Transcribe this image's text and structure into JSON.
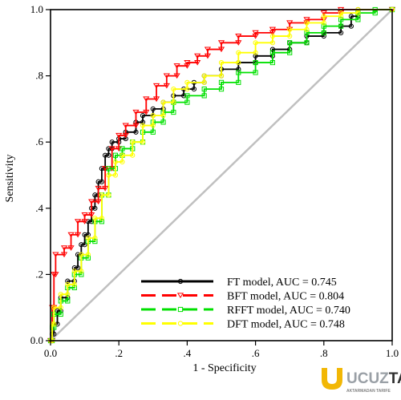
{
  "chart_data": {
    "type": "line",
    "title": "",
    "xlabel": "1 - Specificity",
    "ylabel": "Sensitivity",
    "xlim": [
      0,
      1
    ],
    "ylim": [
      0,
      1
    ],
    "x_ticks": [
      {
        "value": 0.0,
        "label": "0.0"
      },
      {
        "value": 0.2,
        "label": ".2"
      },
      {
        "value": 0.4,
        "label": ".4"
      },
      {
        "value": 0.6,
        "label": ".6"
      },
      {
        "value": 0.8,
        "label": ".8"
      },
      {
        "value": 1.0,
        "label": "1.0"
      }
    ],
    "y_ticks": [
      {
        "value": 0.0,
        "label": "0.0"
      },
      {
        "value": 0.2,
        "label": ".2"
      },
      {
        "value": 0.4,
        "label": ".4"
      },
      {
        "value": 0.6,
        "label": ".6"
      },
      {
        "value": 0.8,
        "label": ".8"
      },
      {
        "value": 1.0,
        "label": "1.0"
      }
    ],
    "grid": false,
    "legend_position": "bottom-right",
    "reference_line": {
      "x": [
        0,
        1
      ],
      "y": [
        0,
        1
      ],
      "color": "#c0c0c0"
    },
    "series": [
      {
        "name": "FT model, AUC = 0.745",
        "color": "#000000",
        "dashed": false,
        "marker": "circle",
        "points": [
          [
            0,
            0
          ],
          [
            0.005,
            0.02
          ],
          [
            0.01,
            0.05
          ],
          [
            0.02,
            0.09
          ],
          [
            0.03,
            0.13
          ],
          [
            0.05,
            0.18
          ],
          [
            0.07,
            0.22
          ],
          [
            0.08,
            0.26
          ],
          [
            0.09,
            0.29
          ],
          [
            0.1,
            0.32
          ],
          [
            0.11,
            0.36
          ],
          [
            0.12,
            0.4
          ],
          [
            0.13,
            0.44
          ],
          [
            0.14,
            0.48
          ],
          [
            0.15,
            0.52
          ],
          [
            0.16,
            0.56
          ],
          [
            0.17,
            0.58
          ],
          [
            0.18,
            0.6
          ],
          [
            0.2,
            0.61
          ],
          [
            0.22,
            0.63
          ],
          [
            0.25,
            0.66
          ],
          [
            0.27,
            0.68
          ],
          [
            0.3,
            0.7
          ],
          [
            0.33,
            0.72
          ],
          [
            0.36,
            0.74
          ],
          [
            0.39,
            0.76
          ],
          [
            0.42,
            0.78
          ],
          [
            0.45,
            0.8
          ],
          [
            0.5,
            0.82
          ],
          [
            0.55,
            0.84
          ],
          [
            0.6,
            0.86
          ],
          [
            0.65,
            0.88
          ],
          [
            0.7,
            0.9
          ],
          [
            0.75,
            0.92
          ],
          [
            0.8,
            0.93
          ],
          [
            0.85,
            0.95
          ],
          [
            0.88,
            0.98
          ],
          [
            0.9,
            1.0
          ],
          [
            1.0,
            1.0
          ]
        ]
      },
      {
        "name": "BFT model, AUC = 0.804",
        "color": "#ff0000",
        "dashed": true,
        "marker": "triangle-down",
        "points": [
          [
            0,
            0
          ],
          [
            0.005,
            0.1
          ],
          [
            0.01,
            0.2
          ],
          [
            0.015,
            0.26
          ],
          [
            0.04,
            0.28
          ],
          [
            0.06,
            0.32
          ],
          [
            0.08,
            0.36
          ],
          [
            0.1,
            0.38
          ],
          [
            0.12,
            0.42
          ],
          [
            0.14,
            0.46
          ],
          [
            0.16,
            0.52
          ],
          [
            0.18,
            0.58
          ],
          [
            0.2,
            0.62
          ],
          [
            0.22,
            0.65
          ],
          [
            0.25,
            0.69
          ],
          [
            0.28,
            0.73
          ],
          [
            0.31,
            0.77
          ],
          [
            0.34,
            0.8
          ],
          [
            0.37,
            0.83
          ],
          [
            0.4,
            0.84
          ],
          [
            0.43,
            0.86
          ],
          [
            0.46,
            0.88
          ],
          [
            0.5,
            0.9
          ],
          [
            0.55,
            0.92
          ],
          [
            0.6,
            0.93
          ],
          [
            0.65,
            0.94
          ],
          [
            0.7,
            0.96
          ],
          [
            0.75,
            0.97
          ],
          [
            0.8,
            0.99
          ],
          [
            0.85,
            1.0
          ],
          [
            1.0,
            1.0
          ]
        ]
      },
      {
        "name": "RFFT model, AUC = 0.740",
        "color": "#00e000",
        "dashed": true,
        "marker": "square",
        "points": [
          [
            0,
            0
          ],
          [
            0.005,
            0.04
          ],
          [
            0.01,
            0.08
          ],
          [
            0.03,
            0.12
          ],
          [
            0.05,
            0.16
          ],
          [
            0.07,
            0.2
          ],
          [
            0.09,
            0.25
          ],
          [
            0.11,
            0.3
          ],
          [
            0.13,
            0.36
          ],
          [
            0.15,
            0.44
          ],
          [
            0.17,
            0.52
          ],
          [
            0.19,
            0.56
          ],
          [
            0.21,
            0.58
          ],
          [
            0.24,
            0.6
          ],
          [
            0.27,
            0.63
          ],
          [
            0.3,
            0.66
          ],
          [
            0.33,
            0.69
          ],
          [
            0.36,
            0.72
          ],
          [
            0.4,
            0.74
          ],
          [
            0.45,
            0.76
          ],
          [
            0.5,
            0.78
          ],
          [
            0.55,
            0.81
          ],
          [
            0.6,
            0.84
          ],
          [
            0.65,
            0.87
          ],
          [
            0.7,
            0.9
          ],
          [
            0.75,
            0.93
          ],
          [
            0.8,
            0.95
          ],
          [
            0.85,
            0.97
          ],
          [
            0.9,
            0.99
          ],
          [
            0.95,
            1.0
          ],
          [
            1.0,
            1.0
          ]
        ]
      },
      {
        "name": "DFT model, AUC = 0.748",
        "color": "#ffff00",
        "dashed": true,
        "marker": "circle",
        "points": [
          [
            0,
            0
          ],
          [
            0.005,
            0.05
          ],
          [
            0.01,
            0.1
          ],
          [
            0.03,
            0.14
          ],
          [
            0.05,
            0.17
          ],
          [
            0.07,
            0.21
          ],
          [
            0.09,
            0.26
          ],
          [
            0.11,
            0.31
          ],
          [
            0.13,
            0.37
          ],
          [
            0.15,
            0.44
          ],
          [
            0.17,
            0.5
          ],
          [
            0.19,
            0.54
          ],
          [
            0.21,
            0.56
          ],
          [
            0.24,
            0.6
          ],
          [
            0.27,
            0.65
          ],
          [
            0.3,
            0.68
          ],
          [
            0.33,
            0.72
          ],
          [
            0.36,
            0.76
          ],
          [
            0.4,
            0.78
          ],
          [
            0.45,
            0.8
          ],
          [
            0.5,
            0.84
          ],
          [
            0.55,
            0.87
          ],
          [
            0.6,
            0.9
          ],
          [
            0.65,
            0.92
          ],
          [
            0.7,
            0.94
          ],
          [
            0.75,
            0.96
          ],
          [
            0.8,
            0.98
          ],
          [
            0.85,
            0.99
          ],
          [
            0.9,
            1.0
          ],
          [
            1.0,
            1.0
          ]
        ]
      }
    ]
  },
  "watermark": {
    "brand_part1": "UCUZ",
    "brand_part2": "TAP",
    "tagline": "AKTARMADAN TARIFE"
  }
}
